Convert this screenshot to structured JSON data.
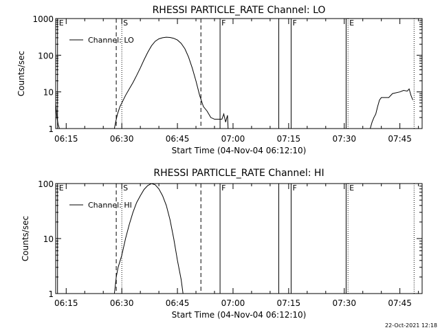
{
  "footer": {
    "date": "22-Oct-2021 12:18"
  },
  "chart_data": [
    {
      "type": "line",
      "title": "RHESSI PARTICLE_RATE Channel: LO",
      "xlabel": "Start Time (04-Nov-04 06:12:10)",
      "ylabel": "Counts/sec",
      "yscale": "log",
      "ylim": [
        1,
        1000
      ],
      "yticks": [
        {
          "v": 1,
          "label": "1"
        },
        {
          "v": 10,
          "label": "10"
        },
        {
          "v": 100,
          "label": "100"
        },
        {
          "v": 1000,
          "label": "1000"
        }
      ],
      "xlim": [
        "06:12:10",
        "07:51:00"
      ],
      "xticks": [
        "06:15",
        "06:30",
        "06:45",
        "07:00",
        "07:15",
        "07:30",
        "07:45"
      ],
      "legend": {
        "label": "Channel: LO",
        "placement": "top-left"
      },
      "markers": [
        {
          "t": "06:12:40",
          "style": "solid",
          "label": "E"
        },
        {
          "t": "06:28:30",
          "style": "dashed",
          "label": ""
        },
        {
          "t": "06:30:00",
          "style": "dotted",
          "label": "S"
        },
        {
          "t": "06:51:20",
          "style": "dashed",
          "label": ""
        },
        {
          "t": "06:56:30",
          "style": "solid",
          "label": "F"
        },
        {
          "t": "07:12:20",
          "style": "solid",
          "label": ""
        },
        {
          "t": "07:15:40",
          "style": "solid",
          "label": "F"
        },
        {
          "t": "07:30:30",
          "style": "solid",
          "label": ""
        },
        {
          "t": "07:31:00",
          "style": "dotted",
          "label": "E"
        },
        {
          "t": "07:48:50",
          "style": "dotted",
          "label": ""
        }
      ],
      "series": [
        {
          "segments": [
            [
              [
                "06:12:10",
                5
              ],
              [
                "06:12:30",
                2
              ],
              [
                "06:12:50",
                1.3
              ],
              [
                "06:13:10",
                1
              ]
            ],
            [
              [
                "06:28:00",
                1
              ],
              [
                "06:28:20",
                1.5
              ],
              [
                "06:28:50",
                2.5
              ],
              [
                "06:29:30",
                4
              ],
              [
                "06:30:00",
                5
              ],
              [
                "06:31:00",
                8
              ],
              [
                "06:32:00",
                12
              ],
              [
                "06:33:00",
                18
              ],
              [
                "06:34:00",
                28
              ],
              [
                "06:35:00",
                45
              ],
              [
                "06:36:00",
                75
              ],
              [
                "06:37:00",
                120
              ],
              [
                "06:38:00",
                180
              ],
              [
                "06:39:00",
                240
              ],
              [
                "06:40:00",
                280
              ],
              [
                "06:41:00",
                300
              ],
              [
                "06:42:00",
                310
              ],
              [
                "06:43:00",
                305
              ],
              [
                "06:44:00",
                290
              ],
              [
                "06:45:00",
                260
              ],
              [
                "06:46:00",
                210
              ],
              [
                "06:47:00",
                150
              ],
              [
                "06:48:00",
                90
              ],
              [
                "06:49:00",
                45
              ],
              [
                "06:50:00",
                20
              ],
              [
                "06:51:00",
                8
              ],
              [
                "06:52:00",
                4
              ],
              [
                "06:53:00",
                3
              ],
              [
                "06:54:00",
                2
              ],
              [
                "06:55:00",
                1.8
              ],
              [
                "06:57:00",
                1.8
              ],
              [
                "06:57:30",
                2.5
              ],
              [
                "06:58:00",
                1.5
              ],
              [
                "06:58:30",
                2.3
              ],
              [
                "06:58:40",
                1
              ]
            ],
            [
              [
                "07:37:00",
                1
              ],
              [
                "07:37:30",
                1.5
              ],
              [
                "07:38:00",
                2
              ],
              [
                "07:38:30",
                2.5
              ],
              [
                "07:39:00",
                4
              ],
              [
                "07:39:30",
                6
              ],
              [
                "07:40:00",
                7
              ],
              [
                "07:42:00",
                7
              ],
              [
                "07:43:00",
                9
              ],
              [
                "07:45:00",
                10
              ],
              [
                "07:46:00",
                11
              ],
              [
                "07:47:00",
                10.5
              ],
              [
                "07:47:30",
                12
              ],
              [
                "07:48:00",
                8
              ],
              [
                "07:48:30",
                6
              ]
            ]
          ]
        }
      ]
    },
    {
      "type": "line",
      "title": "RHESSI PARTICLE_RATE Channel: HI",
      "xlabel": "Start Time (04-Nov-04 06:12:10)",
      "ylabel": "Counts/sec",
      "yscale": "log",
      "ylim": [
        1,
        100
      ],
      "yticks": [
        {
          "v": 1,
          "label": "1"
        },
        {
          "v": 10,
          "label": "10"
        },
        {
          "v": 100,
          "label": "100"
        }
      ],
      "xlim": [
        "06:12:10",
        "07:51:00"
      ],
      "xticks": [
        "06:15",
        "06:30",
        "06:45",
        "07:00",
        "07:15",
        "07:30",
        "07:45"
      ],
      "legend": {
        "label": "Channel: HI",
        "placement": "top-left"
      },
      "markers": [
        {
          "t": "06:12:40",
          "style": "solid",
          "label": "E"
        },
        {
          "t": "06:28:30",
          "style": "dashed",
          "label": ""
        },
        {
          "t": "06:30:00",
          "style": "dotted",
          "label": "S"
        },
        {
          "t": "06:51:20",
          "style": "dashed",
          "label": ""
        },
        {
          "t": "06:56:30",
          "style": "solid",
          "label": "F"
        },
        {
          "t": "07:12:20",
          "style": "solid",
          "label": ""
        },
        {
          "t": "07:15:40",
          "style": "solid",
          "label": "F"
        },
        {
          "t": "07:30:30",
          "style": "solid",
          "label": ""
        },
        {
          "t": "07:31:00",
          "style": "dotted",
          "label": "E"
        },
        {
          "t": "07:48:50",
          "style": "dotted",
          "label": ""
        }
      ],
      "series": [
        {
          "segments": [
            [
              [
                "06:28:00",
                1
              ],
              [
                "06:28:30",
                2
              ],
              [
                "06:29:00",
                3
              ],
              [
                "06:30:00",
                5
              ],
              [
                "06:31:00",
                10
              ],
              [
                "06:32:00",
                18
              ],
              [
                "06:33:00",
                30
              ],
              [
                "06:34:00",
                45
              ],
              [
                "06:35:00",
                60
              ],
              [
                "06:36:00",
                78
              ],
              [
                "06:37:00",
                92
              ],
              [
                "06:38:00",
                100
              ],
              [
                "06:39:00",
                95
              ],
              [
                "06:40:00",
                80
              ],
              [
                "06:41:00",
                60
              ],
              [
                "06:42:00",
                40
              ],
              [
                "06:43:00",
                22
              ],
              [
                "06:44:00",
                10
              ],
              [
                "06:45:00",
                4
              ],
              [
                "06:46:00",
                1.8
              ],
              [
                "06:46:30",
                1
              ]
            ]
          ]
        }
      ]
    }
  ]
}
